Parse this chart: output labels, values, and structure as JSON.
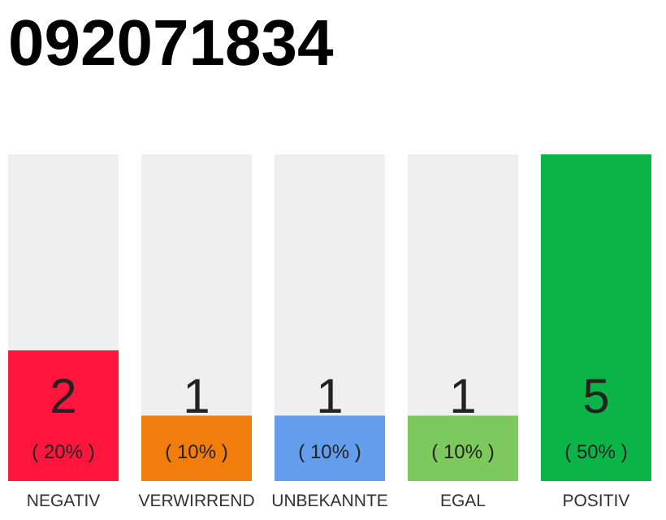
{
  "chart_data": {
    "type": "bar",
    "title": "092071834",
    "data_labels": true,
    "categories": [
      "NEGATIV",
      "VERWIRREND",
      "UNBEKANNTE",
      "EGAL",
      "POSITIV"
    ],
    "colors": [
      "#ff163c",
      "#f07d0c",
      "#659ded",
      "#7dc95e",
      "#0bb446"
    ],
    "values": [
      2,
      1,
      1,
      1,
      5
    ],
    "annotations": [
      "( 20% )",
      "( 10% )",
      "( 10% )",
      "( 10% )",
      "( 50% )"
    ]
  }
}
